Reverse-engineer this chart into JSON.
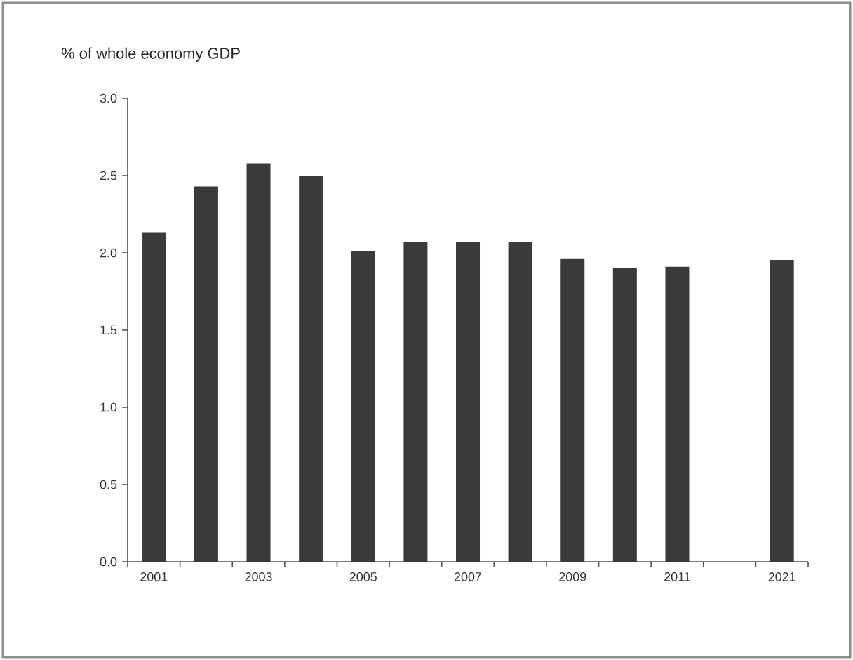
{
  "chart_data": {
    "type": "bar",
    "title": "% of whole economy GDP",
    "categories": [
      "2001",
      null,
      "2003",
      null,
      "2005",
      null,
      "2007",
      null,
      "2009",
      null,
      "2011",
      null,
      "2021"
    ],
    "values": [
      2.13,
      2.43,
      2.58,
      2.5,
      2.01,
      2.07,
      2.07,
      2.07,
      1.96,
      1.9,
      1.91,
      null,
      1.95
    ],
    "color": "#3a3a3a",
    "ylim": [
      0,
      3.0
    ],
    "yticks": [
      {
        "value": 0,
        "label": "0.0"
      },
      {
        "value": 0.5,
        "label": "0.5"
      },
      {
        "value": 1.0,
        "label": "1.0"
      },
      {
        "value": 1.5,
        "label": "1.5"
      },
      {
        "value": 2.0,
        "label": "2.0"
      },
      {
        "value": 2.5,
        "label": "2.5"
      },
      {
        "value": 3.0,
        "label": "3.0"
      }
    ],
    "grid": false
  }
}
